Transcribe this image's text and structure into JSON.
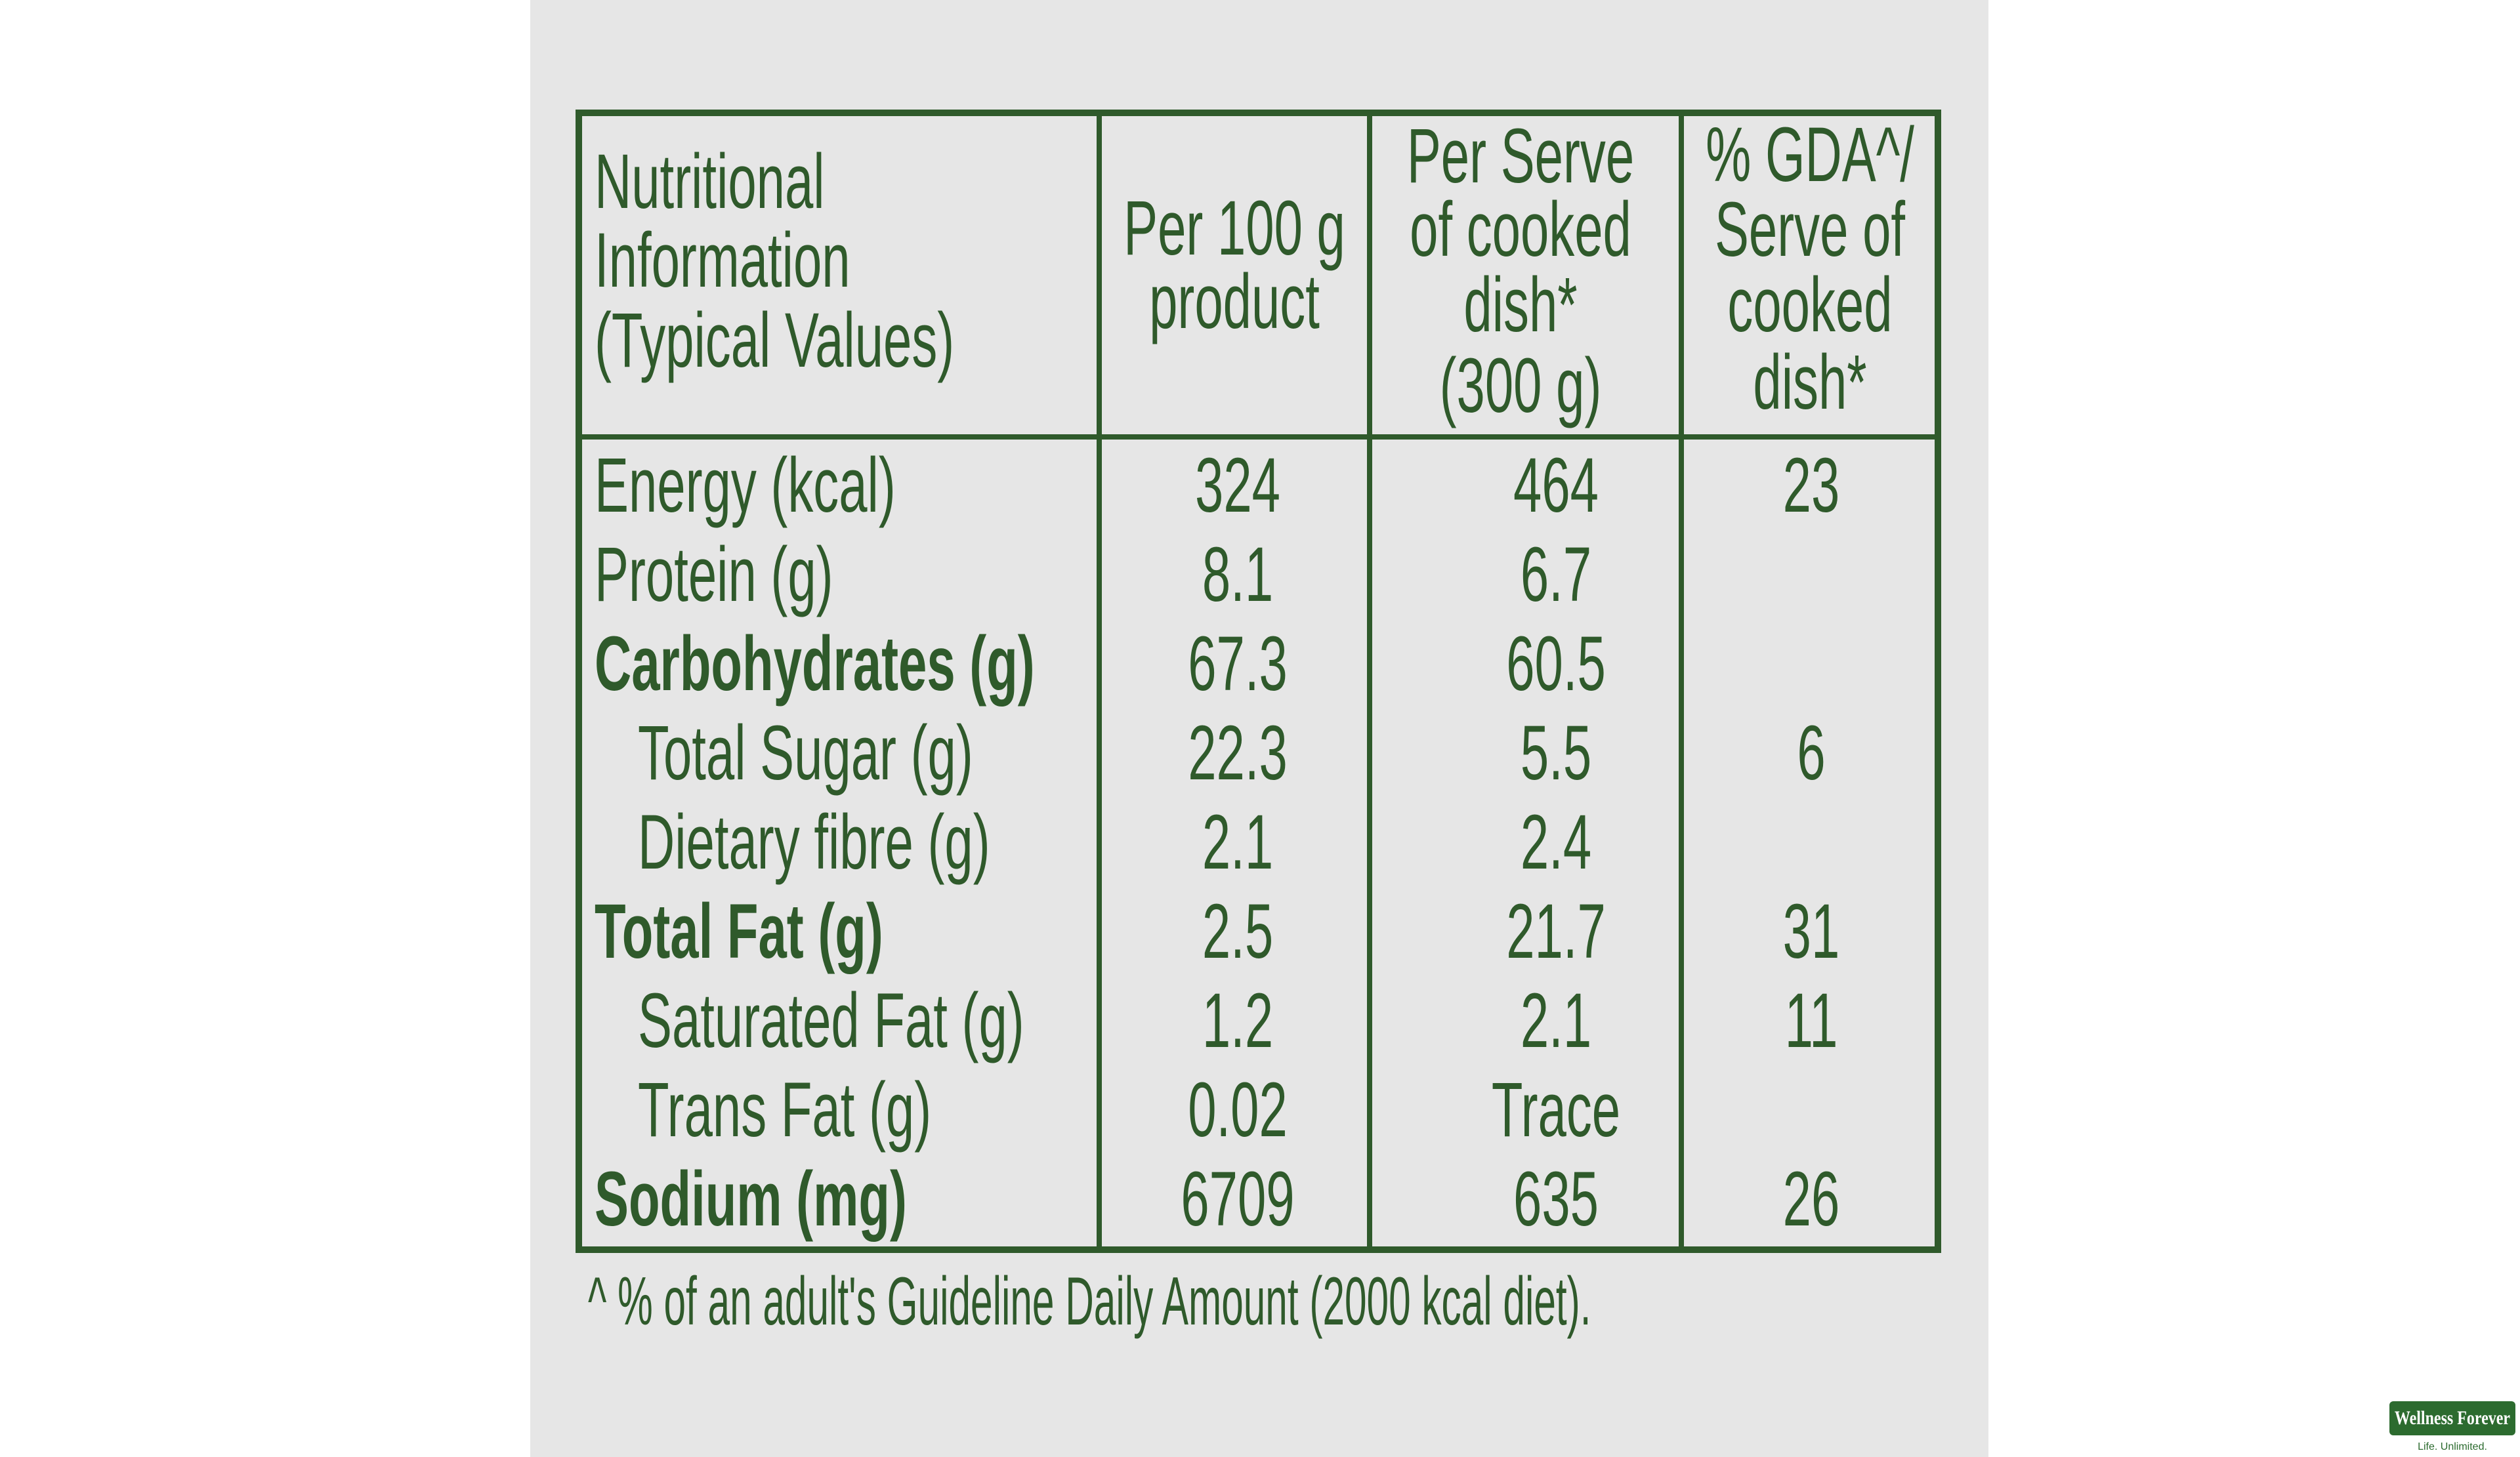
{
  "table": {
    "headers": [
      [
        "Nutritional",
        "Information",
        "(Typical Values)"
      ],
      [
        "Per 100 g",
        "product"
      ],
      [
        "Per Serve",
        "of cooked",
        "dish*",
        "(300 g)"
      ],
      [
        "% GDA^/",
        "Serve of",
        "cooked",
        "dish*"
      ]
    ],
    "rows": [
      [
        "Energy (kcal)",
        "324",
        "464",
        "23"
      ],
      [
        "Protein (g)",
        "8.1",
        "6.7",
        null
      ],
      [
        "Carbohydrates (g)",
        "67.3",
        "60.5",
        null
      ],
      [
        "Total Sugar (g)",
        "22.3",
        "5.5",
        "6"
      ],
      [
        "Dietary fibre (g)",
        "2.1",
        "2.4",
        null
      ],
      [
        "Total Fat (g)",
        "2.5",
        "21.7",
        "31"
      ],
      [
        "Saturated Fat (g)",
        "1.2",
        "2.1",
        "11"
      ],
      [
        "Trans Fat (g)",
        "0.02",
        "Trace",
        null
      ],
      [
        "Sodium (mg)",
        "6709",
        "635",
        "26"
      ]
    ],
    "footnote": "^ % of an adult's Guideline Daily Amount (2000 kcal diet)."
  },
  "logo": {
    "name": "Wellness Forever",
    "tagline": "Life. Unlimited."
  }
}
